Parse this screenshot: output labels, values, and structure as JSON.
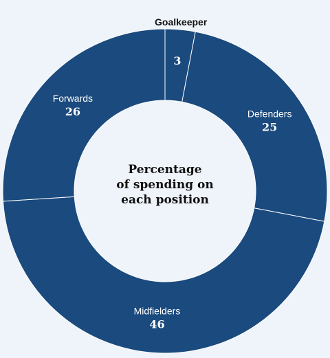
{
  "chart_data": {
    "type": "pie",
    "title_lines": [
      "Percentage",
      "of spending on",
      "each position"
    ],
    "slices": [
      {
        "label": "Goalkeeper",
        "value": 3
      },
      {
        "label": "Defenders",
        "value": 25
      },
      {
        "label": "Midfielders",
        "value": 46
      },
      {
        "label": "Forwards",
        "value": 26
      }
    ]
  },
  "colors": {
    "slice_fill": "#1a4a7e",
    "separator": "#ffffff",
    "background": "#eef4fa"
  }
}
